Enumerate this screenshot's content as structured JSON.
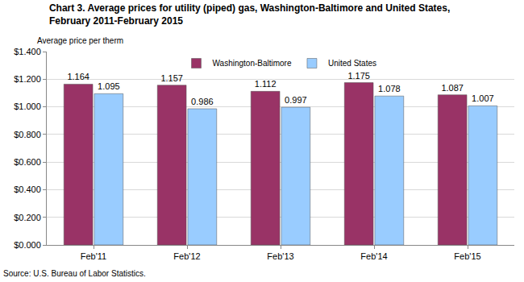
{
  "chart_data": {
    "type": "bar",
    "title": "Chart 3. Average prices for utility (piped) gas, Washington-Baltimore and United States, February 2011-February 2015",
    "y_label": "Average price per therm",
    "source": "Source: U.S. Bureau of Labor Statistics.",
    "categories": [
      "Feb'11",
      "Feb'12",
      "Feb'13",
      "Feb'14",
      "Feb'15"
    ],
    "series": [
      {
        "name": "Washington-Baltimore",
        "color": "#993366",
        "values": [
          1.164,
          1.157,
          1.112,
          1.175,
          1.087
        ]
      },
      {
        "name": "United States",
        "color": "#99ccff",
        "values": [
          1.095,
          0.986,
          0.997,
          1.078,
          1.007
        ]
      }
    ],
    "ylim": [
      0,
      1.4
    ],
    "yticks": [
      {
        "value": 0,
        "label": "$0.000"
      },
      {
        "value": 0.2,
        "label": "$0.200"
      },
      {
        "value": 0.4,
        "label": "$0.400"
      },
      {
        "value": 0.6,
        "label": "$0.600"
      },
      {
        "value": 0.8,
        "label": "$0.800"
      },
      {
        "value": 1.0,
        "label": "$1.000"
      },
      {
        "value": 1.2,
        "label": "$1.200"
      },
      {
        "value": 1.4,
        "label": "$1.400"
      }
    ],
    "grid": true,
    "legend": "top",
    "data_labels": true
  }
}
